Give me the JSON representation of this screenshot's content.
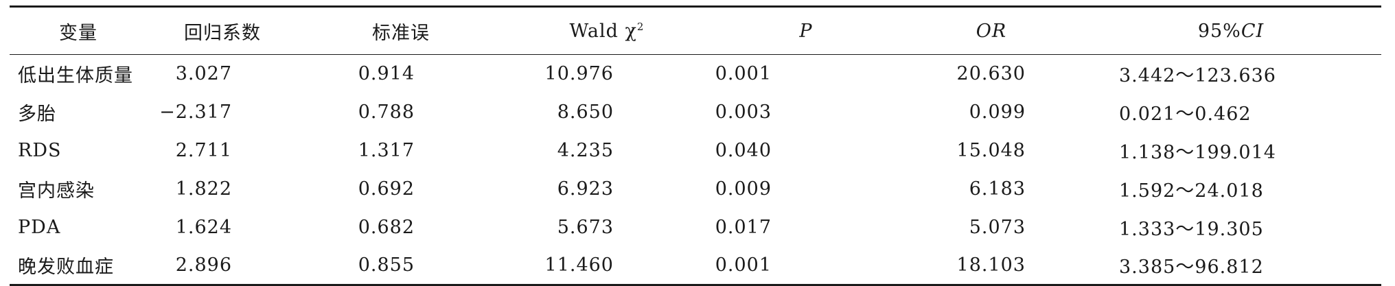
{
  "table": {
    "headers": [
      {
        "text": "变量"
      },
      {
        "text": "回归系数"
      },
      {
        "text": "标准误"
      },
      {
        "text": "Wald χ",
        "sup": "2"
      },
      {
        "text": "P",
        "italic": true
      },
      {
        "text": "OR",
        "italic": true
      },
      {
        "text": "95%",
        "italic_suffix": "CI"
      }
    ],
    "rows": [
      {
        "variable": "低出生体质量",
        "coef": "3.027",
        "se": "0.914",
        "wald": "10.976",
        "p": "0.001",
        "or": "20.630",
        "ci": "3.442～123.636"
      },
      {
        "variable": "多胎",
        "coef": "−2.317",
        "se": "0.788",
        "wald": "8.650",
        "p": "0.003",
        "or": "0.099",
        "ci": "0.021～0.462"
      },
      {
        "variable": "RDS",
        "coef": "2.711",
        "se": "1.317",
        "wald": "4.235",
        "p": "0.040",
        "or": "15.048",
        "ci": "1.138～199.014"
      },
      {
        "variable": "宫内感染",
        "coef": "1.822",
        "se": "0.692",
        "wald": "6.923",
        "p": "0.009",
        "or": "6.183",
        "ci": "1.592～24.018"
      },
      {
        "variable": "PDA",
        "coef": "1.624",
        "se": "0.682",
        "wald": "5.673",
        "p": "0.017",
        "or": "5.073",
        "ci": "1.333～19.305"
      },
      {
        "variable": "晚发败血症",
        "coef": "2.896",
        "se": "0.855",
        "wald": "11.460",
        "p": "0.001",
        "or": "18.103",
        "ci": "3.385～96.812"
      }
    ]
  }
}
